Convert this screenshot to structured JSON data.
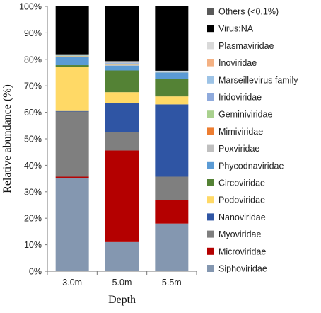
{
  "chart_data": {
    "type": "bar",
    "stacked": true,
    "xlabel": "Depth",
    "ylabel": "Relative abundance (%)",
    "ylim": [
      0,
      100
    ],
    "yticks": [
      "0%",
      "10%",
      "20%",
      "30%",
      "40%",
      "50%",
      "60%",
      "70%",
      "80%",
      "90%",
      "100%"
    ],
    "categories": [
      "3.0m",
      "5.0m",
      "5.5m"
    ],
    "grid": false,
    "legend_position": "right",
    "series": [
      {
        "name": "Siphoviridae",
        "color": "#8497b0",
        "values": [
          35.3,
          11.0,
          18.0
        ]
      },
      {
        "name": "Microviridae",
        "color": "#b40000",
        "values": [
          0.4,
          34.6,
          9.0
        ]
      },
      {
        "name": "Myoviridae",
        "color": "#7f7f7f",
        "values": [
          24.6,
          7.0,
          8.7
        ]
      },
      {
        "name": "Nanoviridae",
        "color": "#2f55a4",
        "values": [
          0.2,
          11.0,
          27.3
        ]
      },
      {
        "name": "Podoviridae",
        "color": "#ffd966",
        "values": [
          16.7,
          4.0,
          3.0
        ]
      },
      {
        "name": "Circoviridae",
        "color": "#548235",
        "values": [
          0.6,
          8.2,
          6.7
        ]
      },
      {
        "name": "Phycodnaviridae",
        "color": "#5b9bd5",
        "values": [
          3.2,
          1.8,
          2.3
        ]
      },
      {
        "name": "Poxviridae",
        "color": "#bfbfbf",
        "values": [
          0.1,
          0.3,
          0.1
        ]
      },
      {
        "name": "Mimiviridae",
        "color": "#ed7d31",
        "values": [
          0.1,
          0.1,
          0.0
        ]
      },
      {
        "name": "Geminiviridae",
        "color": "#a9d18e",
        "values": [
          0.2,
          0.2,
          0.1
        ]
      },
      {
        "name": "Iridoviridae",
        "color": "#8faadc",
        "values": [
          0.1,
          0.3,
          0.2
        ]
      },
      {
        "name": "Marseillevirus family",
        "color": "#9dc3e6",
        "values": [
          0.1,
          0.3,
          0.1
        ]
      },
      {
        "name": "Inoviridae",
        "color": "#f4b183",
        "values": [
          0.0,
          0.1,
          0.0
        ]
      },
      {
        "name": "Plasmaviridae",
        "color": "#d9d9d9",
        "values": [
          0.3,
          0.4,
          0.2
        ]
      },
      {
        "name": "Virus:NA",
        "color": "#000000",
        "values": [
          18.1,
          20.8,
          24.3
        ]
      },
      {
        "name": "Others (<0.1%)",
        "color": "#595959",
        "values": [
          0.0,
          0.0,
          0.0
        ]
      }
    ]
  }
}
